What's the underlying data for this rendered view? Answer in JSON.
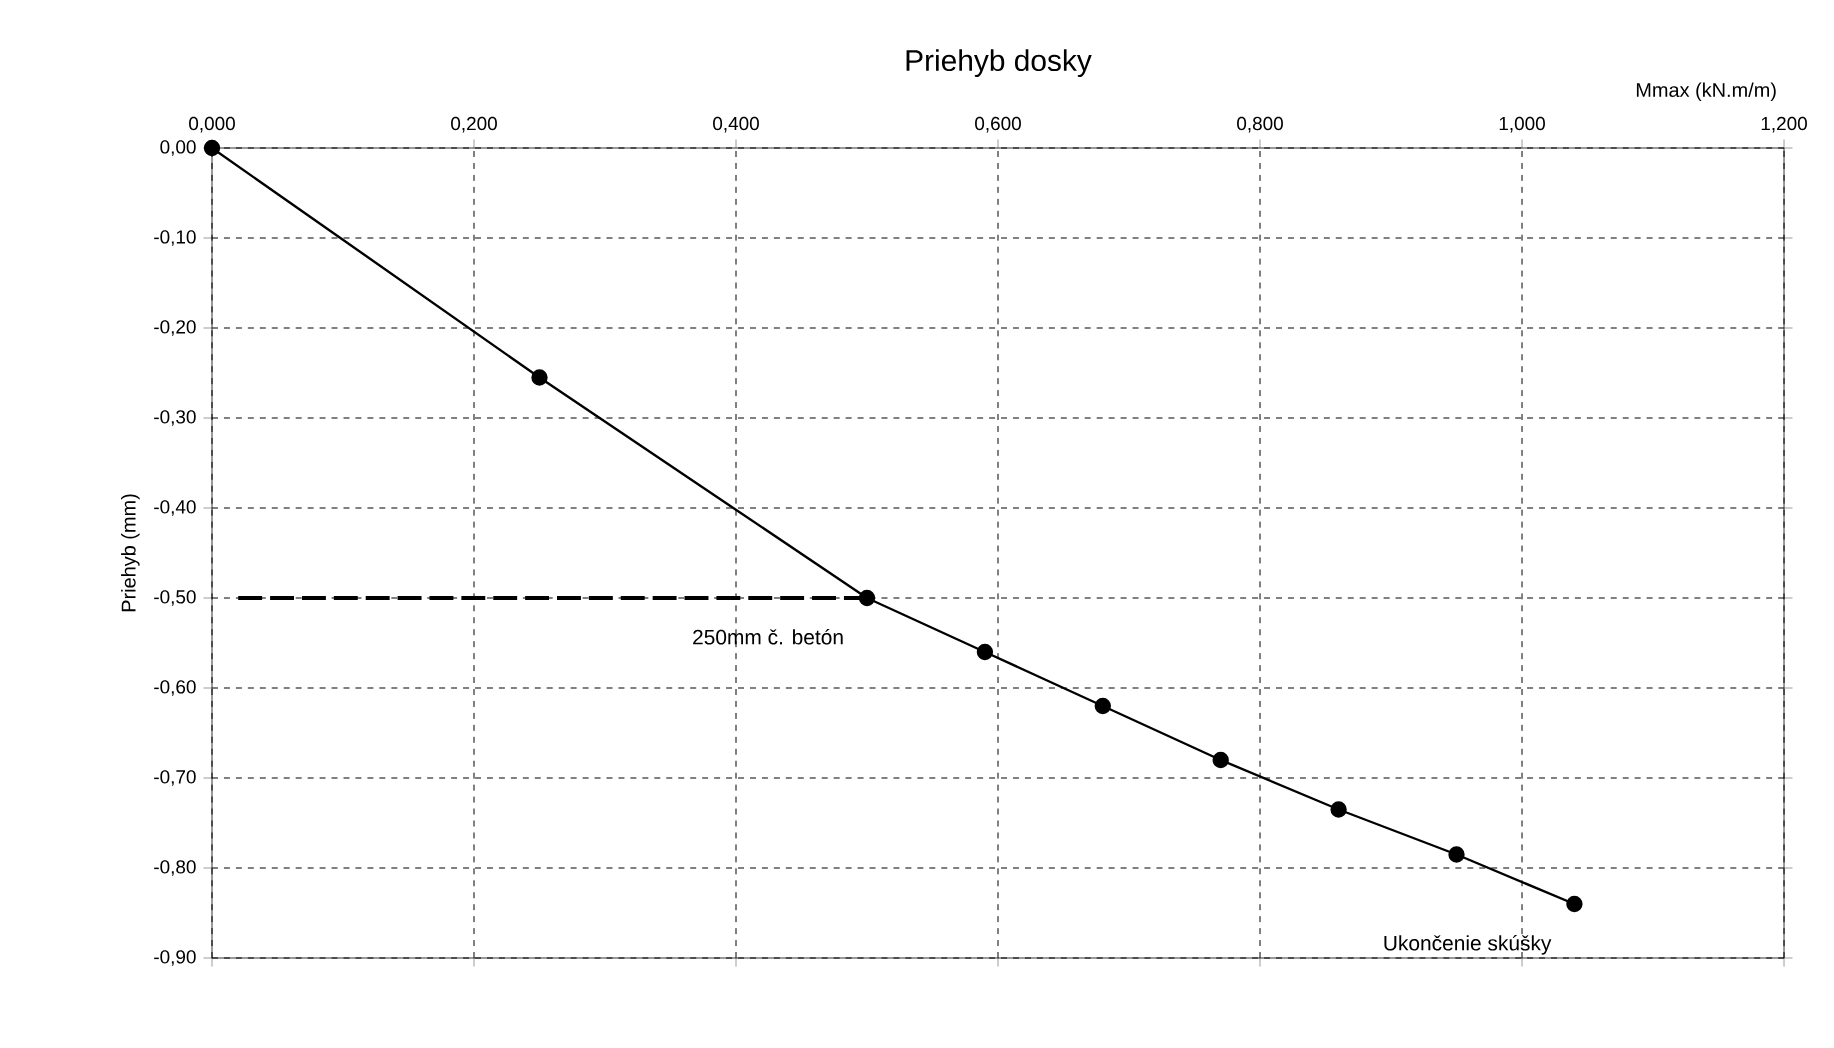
{
  "chart_data": {
    "type": "line",
    "title": "Priehyb dosky",
    "xlabel": "Mmax (kN.m/m)",
    "ylabel": "Priehyb (mm)",
    "xlim": [
      0,
      1.2
    ],
    "ylim": [
      -0.9,
      0
    ],
    "xticks": [
      {
        "value": 0,
        "label": "0,000"
      },
      {
        "value": 0.2,
        "label": "0,200"
      },
      {
        "value": 0.4,
        "label": "0,400"
      },
      {
        "value": 0.6,
        "label": "0,600"
      },
      {
        "value": 0.8,
        "label": "0,800"
      },
      {
        "value": 1.0,
        "label": "1,000"
      },
      {
        "value": 1.2,
        "label": "1,200"
      }
    ],
    "yticks": [
      {
        "value": 0,
        "label": "0,00"
      },
      {
        "value": -0.1,
        "label": "-0,10"
      },
      {
        "value": -0.2,
        "label": "-0,20"
      },
      {
        "value": -0.3,
        "label": "-0,30"
      },
      {
        "value": -0.4,
        "label": "-0,40"
      },
      {
        "value": -0.5,
        "label": "-0,50"
      },
      {
        "value": -0.6,
        "label": "-0,60"
      },
      {
        "value": -0.7,
        "label": "-0,70"
      },
      {
        "value": -0.8,
        "label": "-0,80"
      },
      {
        "value": -0.9,
        "label": "-0,90"
      }
    ],
    "grid": true,
    "series": [
      {
        "color": "#000000",
        "marker": "circle",
        "line_style": "solid",
        "x": [
          0,
          0.25,
          0.5,
          0.59,
          0.68,
          0.77,
          0.86,
          0.95,
          1.04
        ],
        "values": [
          0,
          -0.255,
          -0.5,
          -0.56,
          -0.62,
          -0.68,
          -0.735,
          -0.785,
          -0.84
        ]
      },
      {
        "color": "#000000",
        "marker": "none",
        "line_style": "dashed",
        "x": [
          0.02,
          0.5
        ],
        "values": [
          -0.5,
          -0.5
        ]
      }
    ],
    "annotations": [
      {
        "text": "250mm č. betón",
        "x": 0.5,
        "y": -0.5
      },
      {
        "text": "Ukončenie skúšky",
        "x": 1.04,
        "y": -0.84
      }
    ]
  }
}
